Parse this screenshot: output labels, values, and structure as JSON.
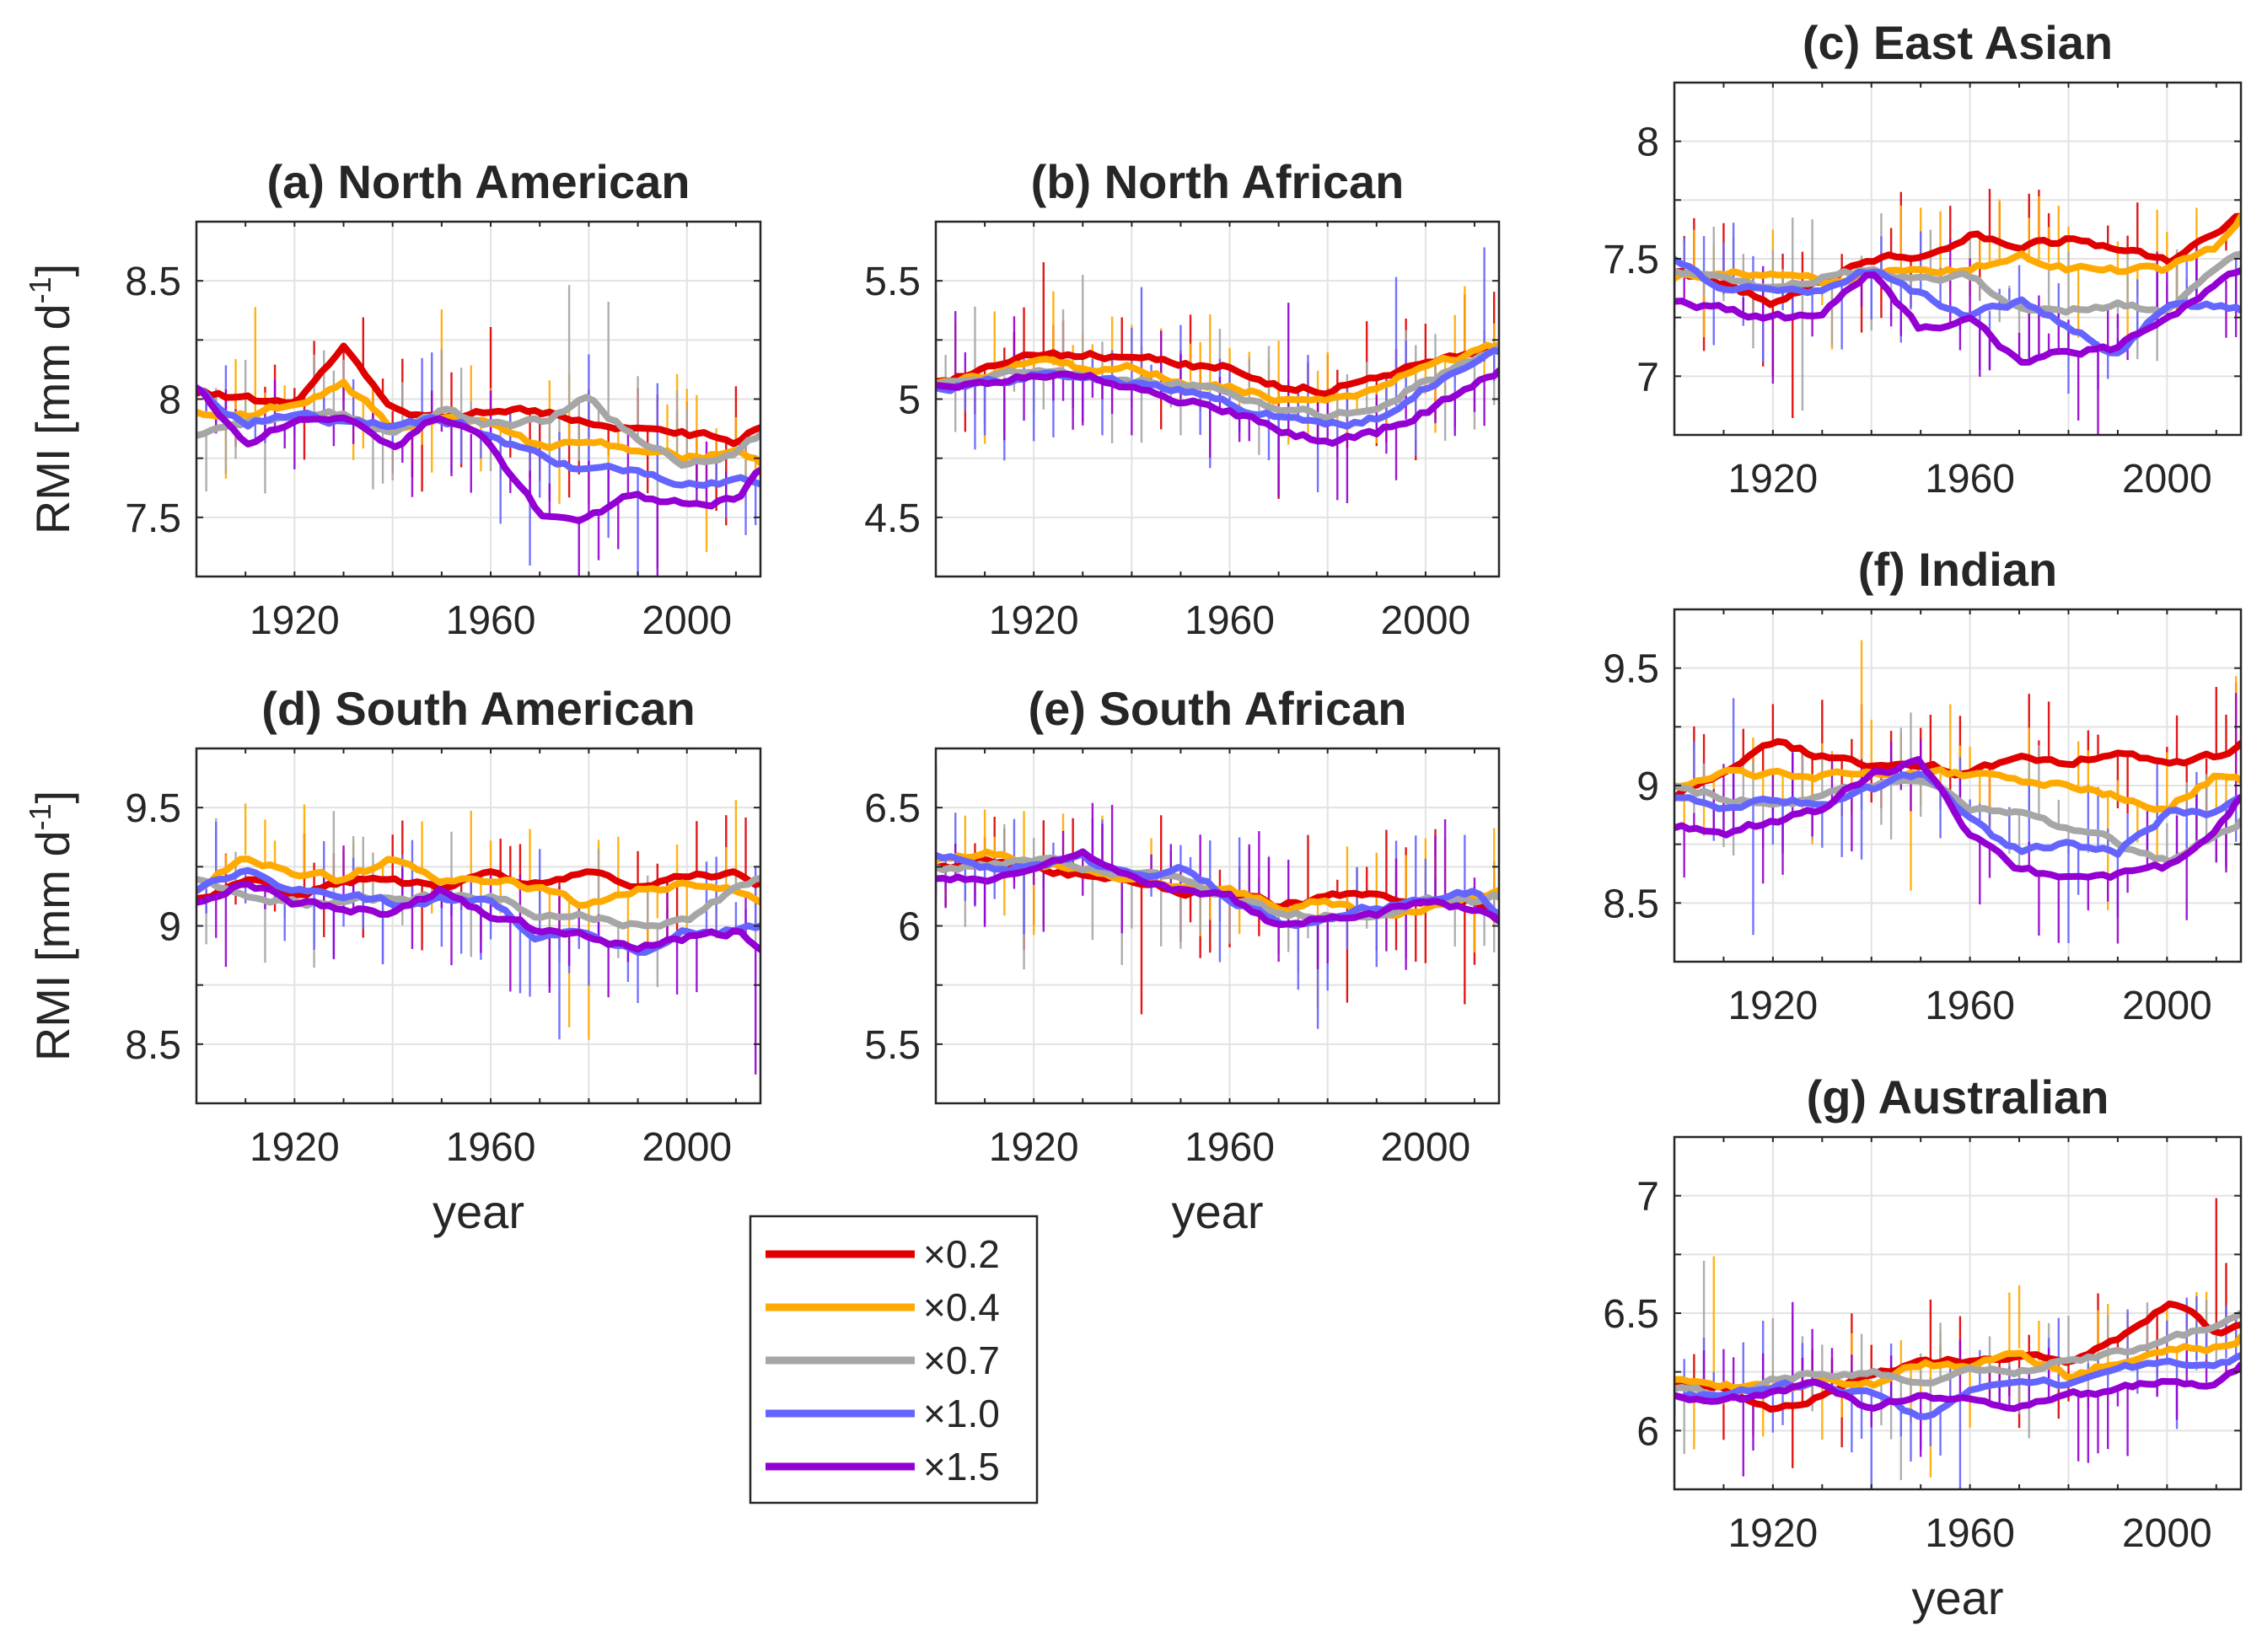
{
  "colors": {
    "x0_2": "#e00000",
    "x0_4": "#ffaa00",
    "x0_7": "#a6a6a6",
    "x1_0": "#6464ff",
    "x1_5": "#9400d3",
    "grid": "#e2e2e2",
    "axis": "#262626"
  },
  "legend": [
    {
      "label": "×0.2",
      "color": "#e00000"
    },
    {
      "label": "×0.4",
      "color": "#ffaa00"
    },
    {
      "label": "×0.7",
      "color": "#a6a6a6"
    },
    {
      "label": "×1.0",
      "color": "#6464ff"
    },
    {
      "label": "×1.5",
      "color": "#9400d3"
    }
  ],
  "chart_data": [
    {
      "id": "a",
      "type": "line",
      "title": "(a) North American",
      "xlabel": "",
      "ylabel": "RMI [mm d-1]",
      "ylabel_base": "RMI [mm d",
      "ylabel_sup": "-1",
      "ylabel_end": "]",
      "xlim": [
        1900,
        2015
      ],
      "ylim": [
        7.25,
        8.75
      ],
      "xticks": [
        1920,
        1960,
        2000
      ],
      "yticks": [
        7.5,
        8,
        8.5
      ],
      "xtick_labels": [
        "1920",
        "1960",
        "2000"
      ],
      "ytick_labels": [
        "7.5",
        "8",
        "8.5"
      ],
      "x": [
        1900,
        1910,
        1920,
        1930,
        1940,
        1950,
        1960,
        1970,
        1980,
        1990,
        2000,
        2010,
        2015
      ],
      "series": [
        {
          "name": "×0.2",
          "values": [
            8.03,
            8.0,
            7.97,
            8.2,
            7.95,
            7.92,
            7.94,
            7.95,
            7.9,
            7.87,
            7.85,
            7.82,
            7.88
          ]
        },
        {
          "name": "×0.4",
          "values": [
            7.95,
            7.92,
            7.98,
            8.06,
            7.88,
            7.92,
            7.9,
            7.8,
            7.82,
            7.78,
            7.75,
            7.78,
            7.73
          ]
        },
        {
          "name": "×0.7",
          "values": [
            7.85,
            7.9,
            7.94,
            7.93,
            7.85,
            7.95,
            7.9,
            7.9,
            8.0,
            7.82,
            7.72,
            7.78,
            7.85
          ]
        },
        {
          "name": "×1.0",
          "values": [
            8.05,
            7.9,
            7.93,
            7.9,
            7.9,
            7.92,
            7.85,
            7.75,
            7.7,
            7.7,
            7.65,
            7.66,
            7.64
          ]
        },
        {
          "name": "×1.5",
          "values": [
            8.05,
            7.8,
            7.92,
            7.92,
            7.8,
            7.93,
            7.8,
            7.52,
            7.5,
            7.6,
            7.55,
            7.58,
            7.7
          ]
        }
      ]
    },
    {
      "id": "b",
      "type": "line",
      "title": "(b) North African",
      "xlabel": "",
      "ylabel": "",
      "xlim": [
        1900,
        2015
      ],
      "ylim": [
        4.25,
        5.75
      ],
      "xticks": [
        1920,
        1960,
        2000
      ],
      "yticks": [
        4.5,
        5,
        5.5
      ],
      "xtick_labels": [
        "1920",
        "1960",
        "2000"
      ],
      "ytick_labels": [
        "4.5",
        "5",
        "5.5"
      ],
      "x": [
        1900,
        1910,
        1920,
        1930,
        1940,
        1950,
        1960,
        1970,
        1980,
        1990,
        2000,
        2010,
        2015
      ],
      "series": [
        {
          "name": "×0.2",
          "values": [
            5.08,
            5.12,
            5.2,
            5.18,
            5.18,
            5.14,
            5.14,
            5.05,
            5.04,
            5.08,
            5.15,
            5.2,
            5.22
          ]
        },
        {
          "name": "×0.4",
          "values": [
            5.07,
            5.1,
            5.15,
            5.13,
            5.13,
            5.08,
            5.05,
            5.0,
            5.0,
            5.05,
            5.14,
            5.2,
            5.23
          ]
        },
        {
          "name": "×0.7",
          "values": [
            5.06,
            5.08,
            5.12,
            5.1,
            5.08,
            5.06,
            5.02,
            4.97,
            4.92,
            4.97,
            5.08,
            5.16,
            5.22
          ]
        },
        {
          "name": "×1.0",
          "values": [
            5.05,
            5.07,
            5.1,
            5.1,
            5.07,
            5.03,
            4.98,
            4.92,
            4.88,
            4.92,
            5.05,
            5.13,
            5.2
          ]
        },
        {
          "name": "×1.5",
          "values": [
            5.06,
            5.06,
            5.1,
            5.11,
            5.05,
            5.0,
            4.95,
            4.86,
            4.82,
            4.86,
            4.95,
            5.05,
            5.12
          ]
        }
      ]
    },
    {
      "id": "c",
      "type": "line",
      "title": "(c) East Asian",
      "xlabel": "",
      "ylabel": "",
      "xlim": [
        1900,
        2015
      ],
      "ylim": [
        6.75,
        8.25
      ],
      "xticks": [
        1920,
        1960,
        2000
      ],
      "yticks": [
        7,
        7.5,
        8
      ],
      "xtick_labels": [
        "1920",
        "1960",
        "2000"
      ],
      "ytick_labels": [
        "7",
        "7.5",
        "8"
      ],
      "x": [
        1900,
        1910,
        1920,
        1930,
        1940,
        1950,
        1960,
        1970,
        1980,
        1990,
        2000,
        2010,
        2015
      ],
      "series": [
        {
          "name": "×0.2",
          "values": [
            7.45,
            7.4,
            7.3,
            7.4,
            7.5,
            7.52,
            7.6,
            7.55,
            7.58,
            7.55,
            7.48,
            7.6,
            7.68
          ]
        },
        {
          "name": "×0.4",
          "values": [
            7.42,
            7.45,
            7.42,
            7.4,
            7.42,
            7.45,
            7.45,
            7.52,
            7.46,
            7.45,
            7.45,
            7.55,
            7.68
          ]
        },
        {
          "name": "×0.7",
          "values": [
            7.45,
            7.42,
            7.38,
            7.42,
            7.45,
            7.42,
            7.42,
            7.3,
            7.28,
            7.3,
            7.28,
            7.45,
            7.52
          ]
        },
        {
          "name": "×1.0",
          "values": [
            7.5,
            7.35,
            7.38,
            7.35,
            7.45,
            7.35,
            7.25,
            7.32,
            7.22,
            7.1,
            7.3,
            7.3,
            7.28
          ]
        },
        {
          "name": "×1.5",
          "values": [
            7.32,
            7.28,
            7.25,
            7.25,
            7.45,
            7.2,
            7.25,
            7.05,
            7.1,
            7.12,
            7.25,
            7.38,
            7.45
          ]
        }
      ]
    },
    {
      "id": "d",
      "type": "line",
      "title": "(d) South American",
      "xlabel": "year",
      "ylabel": "RMI [mm d-1]",
      "ylabel_base": "RMI [mm d",
      "ylabel_sup": "-1",
      "ylabel_end": "]",
      "xlim": [
        1900,
        2015
      ],
      "ylim": [
        8.25,
        9.75
      ],
      "xticks": [
        1920,
        1960,
        2000
      ],
      "yticks": [
        8.5,
        9,
        9.5
      ],
      "xtick_labels": [
        "1920",
        "1960",
        "2000"
      ],
      "ytick_labels": [
        "8.5",
        "9",
        "9.5"
      ],
      "x": [
        1900,
        1910,
        1920,
        1930,
        1940,
        1950,
        1960,
        1970,
        1980,
        1990,
        2000,
        2010,
        2015
      ],
      "series": [
        {
          "name": "×0.2",
          "values": [
            9.12,
            9.2,
            9.12,
            9.18,
            9.2,
            9.15,
            9.22,
            9.18,
            9.22,
            9.15,
            9.2,
            9.22,
            9.18
          ]
        },
        {
          "name": "×0.4",
          "values": [
            9.15,
            9.3,
            9.22,
            9.2,
            9.28,
            9.18,
            9.2,
            9.15,
            9.08,
            9.15,
            9.18,
            9.15,
            9.1
          ]
        },
        {
          "name": "×0.7",
          "values": [
            9.2,
            9.12,
            9.1,
            9.1,
            9.12,
            9.12,
            9.12,
            9.05,
            9.05,
            9.0,
            9.02,
            9.15,
            9.2
          ]
        },
        {
          "name": "×1.0",
          "values": [
            9.15,
            9.22,
            9.15,
            9.12,
            9.1,
            9.12,
            9.1,
            8.95,
            8.98,
            8.88,
            8.98,
            8.98,
            9.0
          ]
        },
        {
          "name": "×1.5",
          "values": [
            9.1,
            9.2,
            9.1,
            9.08,
            9.05,
            9.15,
            9.05,
            8.98,
            8.95,
            8.9,
            8.95,
            8.98,
            8.9
          ]
        }
      ]
    },
    {
      "id": "e",
      "type": "line",
      "title": "(e) South African",
      "xlabel": "year",
      "ylabel": "",
      "xlim": [
        1900,
        2015
      ],
      "ylim": [
        5.25,
        6.75
      ],
      "xticks": [
        1920,
        1960,
        2000
      ],
      "yticks": [
        5.5,
        6,
        6.5
      ],
      "xtick_labels": [
        "1920",
        "1960",
        "2000"
      ],
      "ytick_labels": [
        "5.5",
        "6",
        "6.5"
      ],
      "x": [
        1900,
        1910,
        1920,
        1930,
        1940,
        1950,
        1960,
        1970,
        1980,
        1990,
        2000,
        2010,
        2015
      ],
      "series": [
        {
          "name": "×0.2",
          "values": [
            6.25,
            6.28,
            6.25,
            6.22,
            6.2,
            6.15,
            6.15,
            6.08,
            6.12,
            6.12,
            6.12,
            6.1,
            6.02
          ]
        },
        {
          "name": "×0.4",
          "values": [
            6.28,
            6.3,
            6.26,
            6.25,
            6.18,
            6.18,
            6.15,
            6.08,
            6.1,
            6.05,
            6.08,
            6.12,
            6.15
          ]
        },
        {
          "name": "×0.7",
          "values": [
            6.25,
            6.25,
            6.28,
            6.25,
            6.22,
            6.2,
            6.12,
            6.05,
            6.05,
            6.05,
            6.12,
            6.1,
            6.12
          ]
        },
        {
          "name": "×1.0",
          "values": [
            6.3,
            6.25,
            6.25,
            6.28,
            6.2,
            6.25,
            6.12,
            6.02,
            6.02,
            6.08,
            6.1,
            6.15,
            6.05
          ]
        },
        {
          "name": "×1.5",
          "values": [
            6.2,
            6.2,
            6.25,
            6.3,
            6.22,
            6.15,
            6.12,
            6.0,
            6.05,
            6.05,
            6.1,
            6.08,
            6.02
          ]
        }
      ]
    },
    {
      "id": "f",
      "type": "line",
      "title": "(f) Indian",
      "xlabel": "",
      "ylabel": "",
      "xlim": [
        1900,
        2015
      ],
      "ylim": [
        8.25,
        9.75
      ],
      "xticks": [
        1920,
        1960,
        2000
      ],
      "yticks": [
        8.5,
        9,
        9.5
      ],
      "xtick_labels": [
        "1920",
        "1960",
        "2000"
      ],
      "ytick_labels": [
        "8.5",
        "9",
        "9.5"
      ],
      "x": [
        1900,
        1910,
        1920,
        1930,
        1940,
        1950,
        1960,
        1970,
        1980,
        1990,
        2000,
        2010,
        2015
      ],
      "series": [
        {
          "name": "×0.2",
          "values": [
            8.95,
            9.05,
            9.18,
            9.12,
            9.08,
            9.1,
            9.05,
            9.12,
            9.1,
            9.15,
            9.1,
            9.12,
            9.18
          ]
        },
        {
          "name": "×0.4",
          "values": [
            9.0,
            9.05,
            9.05,
            9.05,
            9.05,
            9.05,
            9.05,
            9.02,
            9.0,
            8.95,
            8.9,
            9.05,
            9.02
          ]
        },
        {
          "name": "×0.7",
          "values": [
            9.0,
            8.95,
            8.92,
            8.95,
            9.0,
            9.02,
            8.9,
            8.88,
            8.82,
            8.75,
            8.68,
            8.8,
            8.85
          ]
        },
        {
          "name": "×1.0",
          "values": [
            8.95,
            8.9,
            8.95,
            8.92,
            8.98,
            9.05,
            8.85,
            8.72,
            8.75,
            8.72,
            8.88,
            8.88,
            8.95
          ]
        },
        {
          "name": "×1.5",
          "values": [
            8.82,
            8.8,
            8.85,
            8.9,
            9.05,
            9.1,
            8.8,
            8.65,
            8.6,
            8.62,
            8.65,
            8.82,
            8.95
          ]
        }
      ]
    },
    {
      "id": "g",
      "type": "line",
      "title": "(g) Australian",
      "xlabel": "year",
      "ylabel": "",
      "xlim": [
        1900,
        2015
      ],
      "ylim": [
        5.75,
        7.25
      ],
      "xticks": [
        1920,
        1960,
        2000
      ],
      "yticks": [
        6,
        6.5,
        7
      ],
      "xtick_labels": [
        "1920",
        "1960",
        "2000"
      ],
      "ytick_labels": [
        "6",
        "6.5",
        "7"
      ],
      "x": [
        1900,
        1910,
        1920,
        1930,
        1940,
        1950,
        1960,
        1970,
        1980,
        1990,
        2000,
        2010,
        2015
      ],
      "series": [
        {
          "name": "×0.2",
          "values": [
            6.2,
            6.18,
            6.08,
            6.15,
            6.25,
            6.28,
            6.3,
            6.3,
            6.3,
            6.4,
            6.55,
            6.42,
            6.45
          ]
        },
        {
          "name": "×0.4",
          "values": [
            6.22,
            6.2,
            6.18,
            6.22,
            6.2,
            6.28,
            6.28,
            6.35,
            6.22,
            6.3,
            6.35,
            6.35,
            6.4
          ]
        },
        {
          "name": "×0.7",
          "values": [
            6.18,
            6.15,
            6.22,
            6.25,
            6.25,
            6.22,
            6.25,
            6.25,
            6.3,
            6.32,
            6.4,
            6.45,
            6.5
          ]
        },
        {
          "name": "×1.0",
          "values": [
            6.15,
            6.15,
            6.18,
            6.2,
            6.15,
            6.05,
            6.18,
            6.22,
            6.2,
            6.25,
            6.3,
            6.3,
            6.32
          ]
        },
        {
          "name": "×1.5",
          "values": [
            6.15,
            6.12,
            6.15,
            6.2,
            6.1,
            6.15,
            6.15,
            6.1,
            6.15,
            6.18,
            6.22,
            6.2,
            6.28
          ]
        }
      ]
    }
  ]
}
